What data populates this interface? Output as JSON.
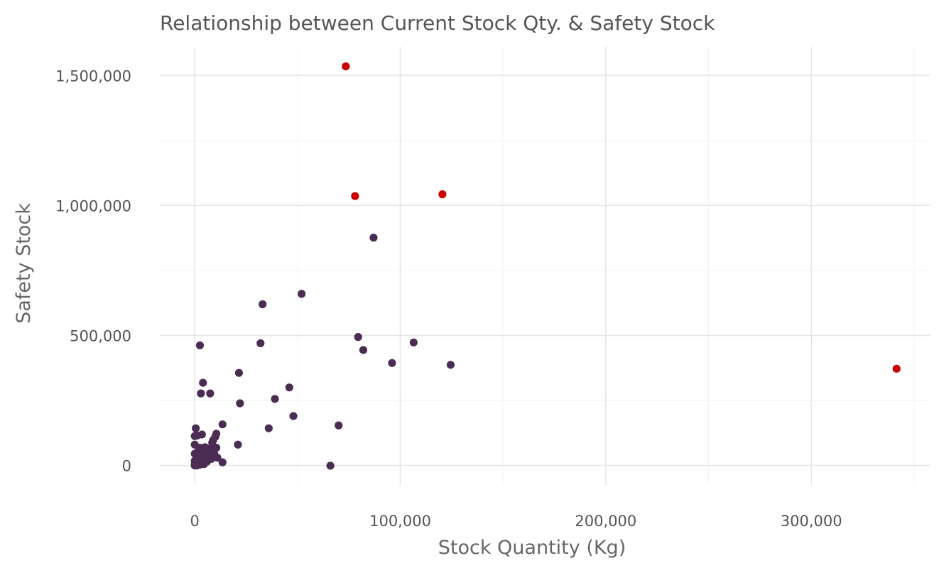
{
  "chart_data": {
    "type": "scatter",
    "title": "Relationship between Current Stock Qty. & Safety Stock",
    "xlabel": "Stock Quantity (Kg)",
    "ylabel": "Safety Stock",
    "xlim": [
      -17000,
      358000
    ],
    "ylim": [
      -75000,
      1610000
    ],
    "x_ticks": [
      0,
      100000,
      200000,
      300000
    ],
    "x_tick_labels": [
      "0",
      "100,000",
      "200,000",
      "300,000"
    ],
    "y_ticks": [
      0,
      500000,
      1000000,
      1500000
    ],
    "y_tick_labels": [
      "0",
      "500,000",
      "1,000,000",
      "1,500,000"
    ],
    "grid": true,
    "colors": {
      "normal": "#4b2c52",
      "outlier": "#cc0000",
      "grid": "#e6e6e6"
    },
    "series": [
      {
        "values": [
          {
            "x": 2500,
            "y": 462000
          },
          {
            "x": 33000,
            "y": 620000
          },
          {
            "x": 52000,
            "y": 660000
          },
          {
            "x": 87000,
            "y": 876000
          },
          {
            "x": 79500,
            "y": 494000
          },
          {
            "x": 82000,
            "y": 444000
          },
          {
            "x": 106500,
            "y": 473000
          },
          {
            "x": 96000,
            "y": 394000
          },
          {
            "x": 124500,
            "y": 387000
          },
          {
            "x": 32000,
            "y": 470000
          },
          {
            "x": 21500,
            "y": 356000
          },
          {
            "x": 39000,
            "y": 256000
          },
          {
            "x": 46000,
            "y": 300000
          },
          {
            "x": 22000,
            "y": 239000
          },
          {
            "x": 48000,
            "y": 190000
          },
          {
            "x": 36000,
            "y": 143000
          },
          {
            "x": 70000,
            "y": 154000
          },
          {
            "x": 21000,
            "y": 80000
          },
          {
            "x": 66000,
            "y": -1000
          },
          {
            "x": 4000,
            "y": 318000
          },
          {
            "x": 3000,
            "y": 277000
          },
          {
            "x": 7500,
            "y": 277000
          },
          {
            "x": 13500,
            "y": 158000
          },
          {
            "x": 500,
            "y": 143000
          },
          {
            "x": 3500,
            "y": 119000
          },
          {
            "x": 0,
            "y": 113000
          },
          {
            "x": 1200,
            "y": 115000
          },
          {
            "x": 10500,
            "y": 122000
          },
          {
            "x": 10000,
            "y": 110000
          },
          {
            "x": 9000,
            "y": 98000
          },
          {
            "x": 8500,
            "y": 88000
          },
          {
            "x": 0,
            "y": 80000
          },
          {
            "x": 2500,
            "y": 68000
          },
          {
            "x": 5000,
            "y": 70000
          },
          {
            "x": 7000,
            "y": 65000
          },
          {
            "x": 10500,
            "y": 68000
          },
          {
            "x": 9000,
            "y": 60000
          },
          {
            "x": 6500,
            "y": 58000
          },
          {
            "x": 4000,
            "y": 55000
          },
          {
            "x": 1500,
            "y": 52000
          },
          {
            "x": 0,
            "y": 45000
          },
          {
            "x": 3000,
            "y": 40000
          },
          {
            "x": 5500,
            "y": 38000
          },
          {
            "x": 7500,
            "y": 32000
          },
          {
            "x": 11000,
            "y": 30000
          },
          {
            "x": 2000,
            "y": 25000
          },
          {
            "x": 4500,
            "y": 22000
          },
          {
            "x": 8000,
            "y": 25000
          },
          {
            "x": 0,
            "y": 18000
          },
          {
            "x": 1500,
            "y": 12000
          },
          {
            "x": 3500,
            "y": 10000
          },
          {
            "x": 6000,
            "y": 15000
          },
          {
            "x": 13500,
            "y": 12000
          },
          {
            "x": 0,
            "y": 5000
          },
          {
            "x": 1000,
            "y": 0
          },
          {
            "x": 2500,
            "y": 3000
          },
          {
            "x": 0,
            "y": 0
          },
          {
            "x": 4500,
            "y": 5000
          },
          {
            "x": 9500,
            "y": 45000
          },
          {
            "x": 6000,
            "y": 50000
          },
          {
            "x": 3000,
            "y": 60000
          },
          {
            "x": 1000,
            "y": 30000
          },
          {
            "x": 500,
            "y": 8000
          }
        ]
      },
      {
        "values": [
          {
            "x": 73500,
            "y": 1535000
          },
          {
            "x": 78000,
            "y": 1036000
          },
          {
            "x": 120500,
            "y": 1043000
          },
          {
            "x": 341500,
            "y": 372000
          }
        ]
      }
    ]
  }
}
